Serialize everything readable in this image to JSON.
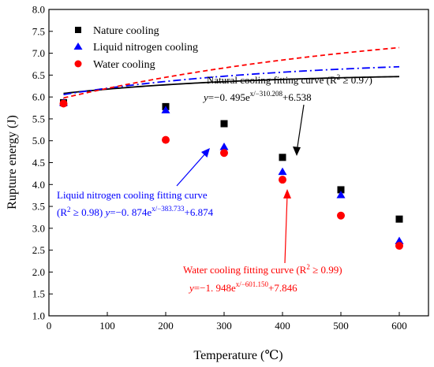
{
  "chart_data": {
    "type": "scatter",
    "xlabel": "Temperature (℃)",
    "ylabel": "Rupture energy (J)",
    "xlim": [
      0,
      650
    ],
    "ylim": [
      1.0,
      8.0
    ],
    "x_ticks": [
      "0",
      "100",
      "200",
      "300",
      "400",
      "500",
      "600"
    ],
    "y_ticks": [
      "1.0",
      "1.5",
      "2.0",
      "2.5",
      "3.0",
      "3.5",
      "4.0",
      "4.5",
      "5.0",
      "5.5",
      "6.0",
      "6.5",
      "7.0",
      "7.5",
      "8.0"
    ],
    "grid": false,
    "legend_position": "top-left",
    "series": [
      {
        "name": "Nature cooling",
        "marker": "square",
        "color": "#000000",
        "x": [
          25,
          200,
          300,
          400,
          500,
          600
        ],
        "y": [
          5.87,
          5.78,
          5.39,
          4.62,
          3.88,
          3.21
        ],
        "fit": {
          "a": -0.495,
          "b": -310.208,
          "c": 6.538,
          "style": "solid"
        }
      },
      {
        "name": "Liquid nitrogen cooling",
        "marker": "triangle",
        "color": "#0000ff",
        "x": [
          25,
          200,
          300,
          400,
          500,
          600
        ],
        "y": [
          5.87,
          5.7,
          4.86,
          4.29,
          3.76,
          2.71
        ],
        "fit": {
          "a": -0.874,
          "b": -383.733,
          "c": 6.874,
          "style": "dashdot"
        }
      },
      {
        "name": "Water cooling",
        "marker": "circle",
        "color": "#ff0000",
        "x": [
          25,
          200,
          300,
          400,
          500,
          600
        ],
        "y": [
          5.85,
          5.02,
          4.72,
          4.11,
          3.29,
          2.6
        ],
        "fit": {
          "a": -1.948,
          "b": -601.15,
          "c": 7.846,
          "style": "dashed"
        }
      }
    ],
    "annotations": [
      {
        "key": "natural",
        "line1_prefix": "Natural cooling fitting curve (R",
        "line1_sup": "2",
        "line1_suffix": " ≥ 0.97)",
        "eq_y": "y",
        "eq_main": "=−0. 495e",
        "eq_sup": "x/−310.208",
        "eq_tail": "+6.538",
        "color": "#000000"
      },
      {
        "key": "nitrogen",
        "line1": "Liquid nitrogen cooling fitting curve",
        "line2_prefix": "(R",
        "line2_sup": "2",
        "line2_mid": " ≥ 0.98)  ",
        "eq_y": "y",
        "eq_main": "=−0. 874e",
        "eq_sup": "x/−383.733",
        "eq_tail": "+6.874",
        "color": "#0000ff"
      },
      {
        "key": "water",
        "line1_prefix": "Water cooling fitting curve  (R",
        "line1_sup": "2",
        "line1_suffix": " ≥ 0.99)",
        "eq_y": "y",
        "eq_main": "=−1. 948e",
        "eq_sup": "x/−601.150",
        "eq_tail": "+7.846",
        "color": "#ff0000"
      }
    ]
  }
}
